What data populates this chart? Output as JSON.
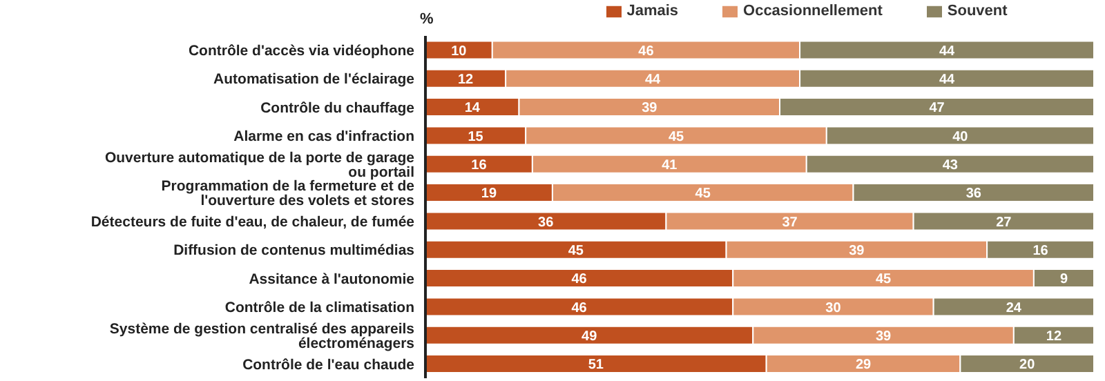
{
  "chart_data": {
    "type": "bar",
    "orientation": "horizontal",
    "stacked": true,
    "xlabel": "%",
    "categories": [
      "Contrôle d'accès via vidéophone",
      "Automatisation de l'éclairage",
      "Contrôle du chauffage",
      "Alarme en cas d'infraction",
      "Ouverture automatique de la porte de garage ou portail",
      "Programmation de la fermeture et de l'ouverture des volets et stores",
      "Détecteurs de fuite d'eau, de chaleur, de fumée",
      "Diffusion de contenus multimédias",
      "Assitance à l'autonomie",
      "Contrôle de la climatisation",
      "Système de gestion centralisé des appareils électroménagers",
      "Contrôle de l'eau chaude"
    ],
    "series": [
      {
        "name": "Jamais",
        "color": "#c0501f",
        "values": [
          10,
          12,
          14,
          15,
          16,
          19,
          36,
          45,
          46,
          46,
          49,
          51
        ]
      },
      {
        "name": "Occasionnellement",
        "color": "#e0956a",
        "values": [
          46,
          44,
          39,
          45,
          41,
          45,
          37,
          39,
          45,
          30,
          39,
          29
        ]
      },
      {
        "name": "Souvent",
        "color": "#8c8463",
        "values": [
          44,
          44,
          47,
          40,
          43,
          36,
          27,
          16,
          9,
          24,
          12,
          20
        ]
      }
    ],
    "xlim": [
      0,
      100
    ],
    "tick_labels": "y",
    "data_labels": true,
    "legend": "top",
    "grid": false
  }
}
